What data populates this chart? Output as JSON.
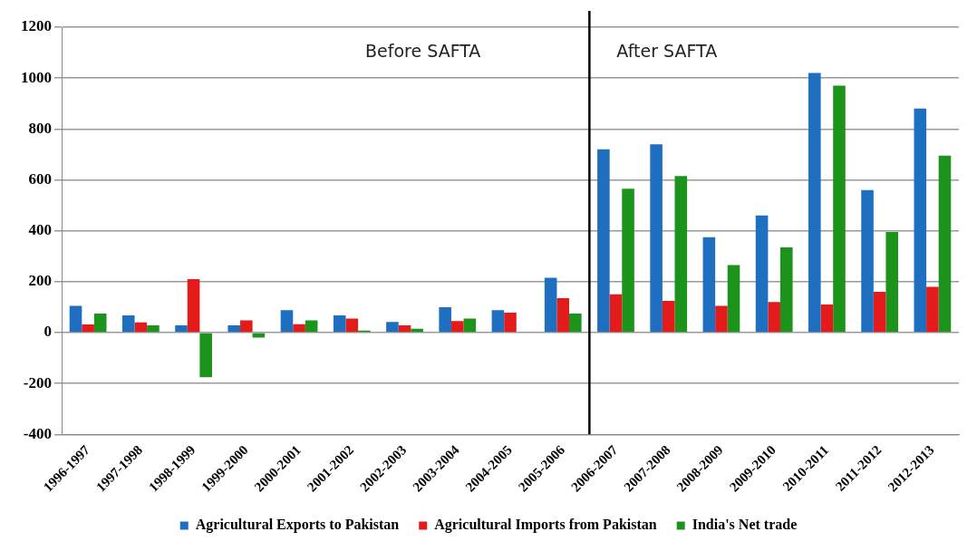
{
  "chart_data": {
    "type": "bar",
    "categories": [
      "1996-1997",
      "1997-1998",
      "1998-1999",
      "1999-2000",
      "2000-2001",
      "2001-2002",
      "2002-2003",
      "2003-2004",
      "2004-2005",
      "2005-2006",
      "2006-2007",
      "2007-2008",
      "2008-2009",
      "2009-2010",
      "2010-2011",
      "2011-2012",
      "2012-2013"
    ],
    "series": [
      {
        "name": "Agricultural Exports to Pakistan",
        "color": "#1f6fc0",
        "values": [
          105,
          68,
          28,
          28,
          88,
          68,
          42,
          100,
          88,
          215,
          720,
          740,
          375,
          460,
          1020,
          560,
          880
        ]
      },
      {
        "name": "Agricultural Imports from Pakistan",
        "color": "#e31b1b",
        "values": [
          32,
          40,
          210,
          48,
          33,
          55,
          28,
          45,
          78,
          135,
          150,
          125,
          105,
          120,
          110,
          160,
          180
        ]
      },
      {
        "name": "India's Net trade",
        "color": "#1c941c",
        "values": [
          75,
          28,
          -175,
          -20,
          48,
          8,
          15,
          55,
          null,
          75,
          565,
          615,
          265,
          335,
          970,
          395,
          695
        ]
      }
    ],
    "ylim": [
      -400,
      1200
    ],
    "yticks": [
      -400,
      -200,
      0,
      200,
      400,
      600,
      800,
      1000,
      1200
    ],
    "grid": "y",
    "legend": "bottom",
    "ref_lines": [
      {
        "axis": "x",
        "value": "2006-2007",
        "color": "#000000"
      }
    ],
    "annotations": [
      "Before SAFTA",
      "After SAFTA"
    ]
  }
}
